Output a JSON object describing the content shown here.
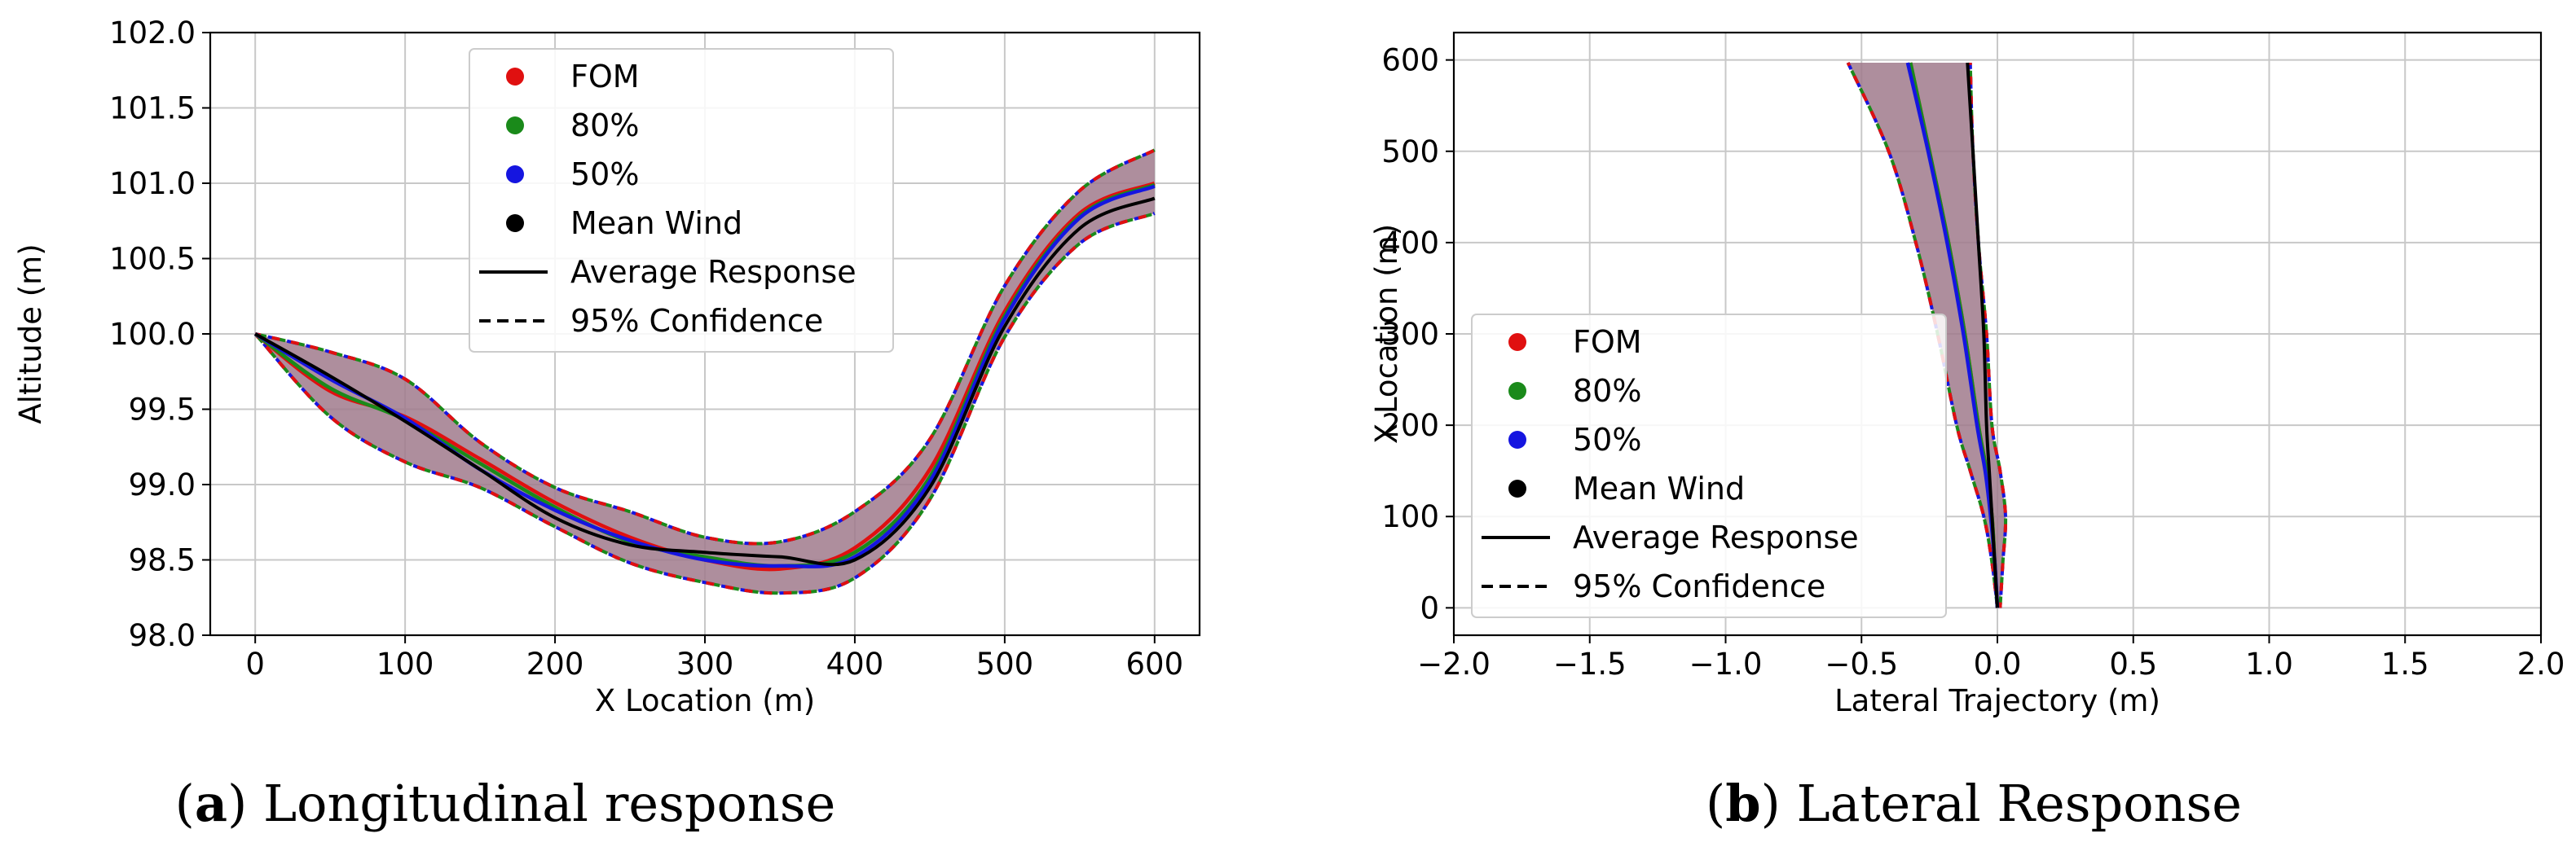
{
  "colors": {
    "fom": "#e01010",
    "p80": "#1a8a1a",
    "p50": "#1515e0",
    "mean": "#000000",
    "band": "#a07a8c",
    "grid": "#c8c8c8"
  },
  "chart_data": [
    {
      "type": "line",
      "id": "a",
      "caption_letter": "a",
      "caption_text": "Longitudinal response",
      "xlabel": "X Location (m)",
      "ylabel": "Altitude (m)",
      "xlim": [
        -30,
        630
      ],
      "ylim": [
        98.0,
        102.0
      ],
      "xticks": [
        0,
        100,
        200,
        300,
        400,
        500,
        600
      ],
      "xtick_labels": [
        "0",
        "100",
        "200",
        "300",
        "400",
        "500",
        "600"
      ],
      "yticks": [
        98.0,
        98.5,
        99.0,
        99.5,
        100.0,
        100.5,
        101.0,
        101.5,
        102.0
      ],
      "ytick_labels": [
        "98.0",
        "98.5",
        "99.0",
        "99.5",
        "100.0",
        "100.5",
        "101.0",
        "101.5",
        "102.0"
      ],
      "legend_position": "upper-center",
      "legend": [
        "FOM",
        "80%",
        "50%",
        "Mean Wind",
        "Average Response",
        "95% Confidence"
      ],
      "series": [
        {
          "name": "Upper 95% Confidence",
          "x": [
            0,
            50,
            100,
            150,
            200,
            250,
            300,
            350,
            400,
            450,
            500,
            550,
            600
          ],
          "y": [
            100.0,
            99.88,
            99.7,
            99.28,
            98.98,
            98.82,
            98.65,
            98.62,
            98.82,
            99.3,
            100.32,
            100.95,
            101.22
          ]
        },
        {
          "name": "Lower 95% Confidence",
          "x": [
            0,
            50,
            100,
            150,
            200,
            250,
            300,
            350,
            400,
            450,
            500,
            550,
            600
          ],
          "y": [
            100.0,
            99.45,
            99.15,
            98.98,
            98.72,
            98.48,
            98.35,
            98.28,
            98.38,
            98.9,
            99.98,
            100.6,
            100.8
          ]
        },
        {
          "name": "FOM",
          "x": [
            0,
            50,
            100,
            150,
            200,
            250,
            300,
            350,
            400,
            450,
            500,
            550,
            600
          ],
          "y": [
            100.0,
            99.62,
            99.45,
            99.17,
            98.88,
            98.65,
            98.5,
            98.44,
            98.58,
            99.1,
            100.15,
            100.8,
            101.0
          ]
        },
        {
          "name": "80%",
          "x": [
            0,
            50,
            100,
            150,
            200,
            250,
            300,
            350,
            400,
            450,
            500,
            550,
            600
          ],
          "y": [
            100.0,
            99.64,
            99.43,
            99.14,
            98.85,
            98.62,
            98.52,
            98.46,
            98.55,
            99.05,
            100.12,
            100.78,
            100.99
          ]
        },
        {
          "name": "50%",
          "x": [
            0,
            50,
            100,
            150,
            200,
            250,
            300,
            350,
            400,
            450,
            500,
            550,
            600
          ],
          "y": [
            100.0,
            99.7,
            99.44,
            99.1,
            98.83,
            98.63,
            98.5,
            98.46,
            98.52,
            99.02,
            100.1,
            100.77,
            100.98
          ]
        },
        {
          "name": "Mean Wind",
          "x": [
            0,
            50,
            100,
            150,
            200,
            250,
            300,
            350,
            400,
            450,
            500,
            550,
            600
          ],
          "y": [
            100.0,
            99.72,
            99.42,
            99.1,
            98.78,
            98.6,
            98.55,
            98.52,
            98.5,
            98.98,
            100.05,
            100.7,
            100.9
          ]
        }
      ]
    },
    {
      "type": "line",
      "id": "b",
      "caption_letter": "b",
      "caption_text": "Lateral Response",
      "xlabel": "Lateral Trajectory (m)",
      "ylabel": "X Location (m)",
      "xlim": [
        -2.0,
        2.0
      ],
      "ylim": [
        -30,
        630
      ],
      "xticks": [
        -2.0,
        -1.5,
        -1.0,
        -0.5,
        0.0,
        0.5,
        1.0,
        1.5,
        2.0
      ],
      "xtick_labels": [
        "−2.0",
        "−1.5",
        "−1.0",
        "−0.5",
        "0.0",
        "0.5",
        "1.0",
        "1.5",
        "2.0"
      ],
      "yticks": [
        0,
        100,
        200,
        300,
        400,
        500,
        600
      ],
      "ytick_labels": [
        "0",
        "100",
        "200",
        "300",
        "400",
        "500",
        "600"
      ],
      "legend_position": "lower-left",
      "legend": [
        "FOM",
        "80%",
        "50%",
        "Mean Wind",
        "Average Response",
        "95% Confidence"
      ],
      "series": [
        {
          "name": "Left 95% Confidence",
          "x": [
            0.0,
            -0.02,
            -0.05,
            -0.1,
            -0.15,
            -0.22,
            -0.3,
            -0.4,
            -0.55
          ],
          "y": [
            0,
            50,
            100,
            150,
            200,
            300,
            400,
            500,
            597
          ]
        },
        {
          "name": "Right 95% Confidence",
          "x": [
            0.01,
            0.02,
            0.03,
            0.01,
            -0.02,
            -0.04,
            -0.07,
            -0.09,
            -0.1
          ],
          "y": [
            0,
            50,
            100,
            150,
            200,
            300,
            400,
            500,
            597
          ]
        },
        {
          "name": "FOM",
          "x": [
            0.0,
            -0.01,
            -0.02,
            -0.04,
            -0.07,
            -0.12,
            -0.18,
            -0.25,
            -0.32
          ],
          "y": [
            0,
            50,
            100,
            150,
            200,
            300,
            400,
            500,
            597
          ]
        },
        {
          "name": "80%",
          "x": [
            0.0,
            -0.01,
            -0.02,
            -0.04,
            -0.07,
            -0.12,
            -0.18,
            -0.25,
            -0.32
          ],
          "y": [
            0,
            50,
            100,
            150,
            200,
            300,
            400,
            500,
            597
          ]
        },
        {
          "name": "50%",
          "x": [
            0.0,
            -0.01,
            -0.025,
            -0.045,
            -0.075,
            -0.125,
            -0.185,
            -0.255,
            -0.33
          ],
          "y": [
            0,
            50,
            100,
            150,
            200,
            300,
            400,
            500,
            597
          ]
        },
        {
          "name": "Mean Wind",
          "x": [
            0.0,
            -0.01,
            -0.02,
            -0.03,
            -0.04,
            -0.05,
            -0.07,
            -0.09,
            -0.11
          ],
          "y": [
            0,
            50,
            100,
            150,
            200,
            300,
            400,
            500,
            597
          ]
        }
      ]
    }
  ]
}
